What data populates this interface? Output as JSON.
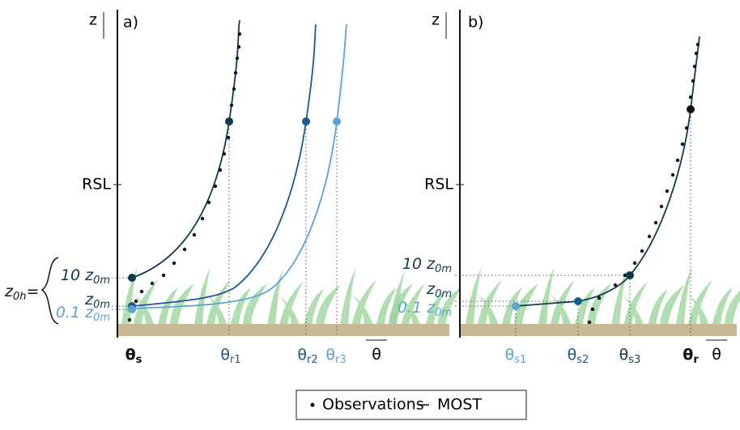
{
  "panel_a": {
    "z_label": "z",
    "panel_label": "a)",
    "rsl_label": "RSL",
    "height_labels": [
      {
        "text": "10 z",
        "sub": "0m"
      },
      {
        "text": "z",
        "sub": "0m"
      },
      {
        "text": "0.1 z",
        "sub": "0m"
      }
    ],
    "z0h_label": {
      "text": "z",
      "sub": "0h",
      "suffix": "="
    },
    "x_labels": [
      {
        "text": "θ",
        "sub": "s"
      },
      {
        "text": "θ",
        "sub": "r1"
      },
      {
        "text": "θ",
        "sub": "r2"
      },
      {
        "text": "θ",
        "sub": "r3"
      }
    ],
    "x_axis_label": "θ"
  },
  "panel_b": {
    "z_label": "z",
    "panel_label": "b)",
    "rsl_label": "RSL",
    "height_labels": [
      {
        "text": "10 z",
        "sub": "0m"
      },
      {
        "text": "z",
        "sub": "0m"
      },
      {
        "text": "0.1 z",
        "sub": "0m"
      }
    ],
    "x_labels": [
      {
        "text": "θ",
        "sub": "s1"
      },
      {
        "text": "θ",
        "sub": "s2"
      },
      {
        "text": "θ",
        "sub": "s3"
      },
      {
        "text": "θ",
        "sub": "r"
      }
    ],
    "x_axis_label": "θ"
  },
  "legend": {
    "observations": "Observations",
    "most": "MOST"
  }
}
